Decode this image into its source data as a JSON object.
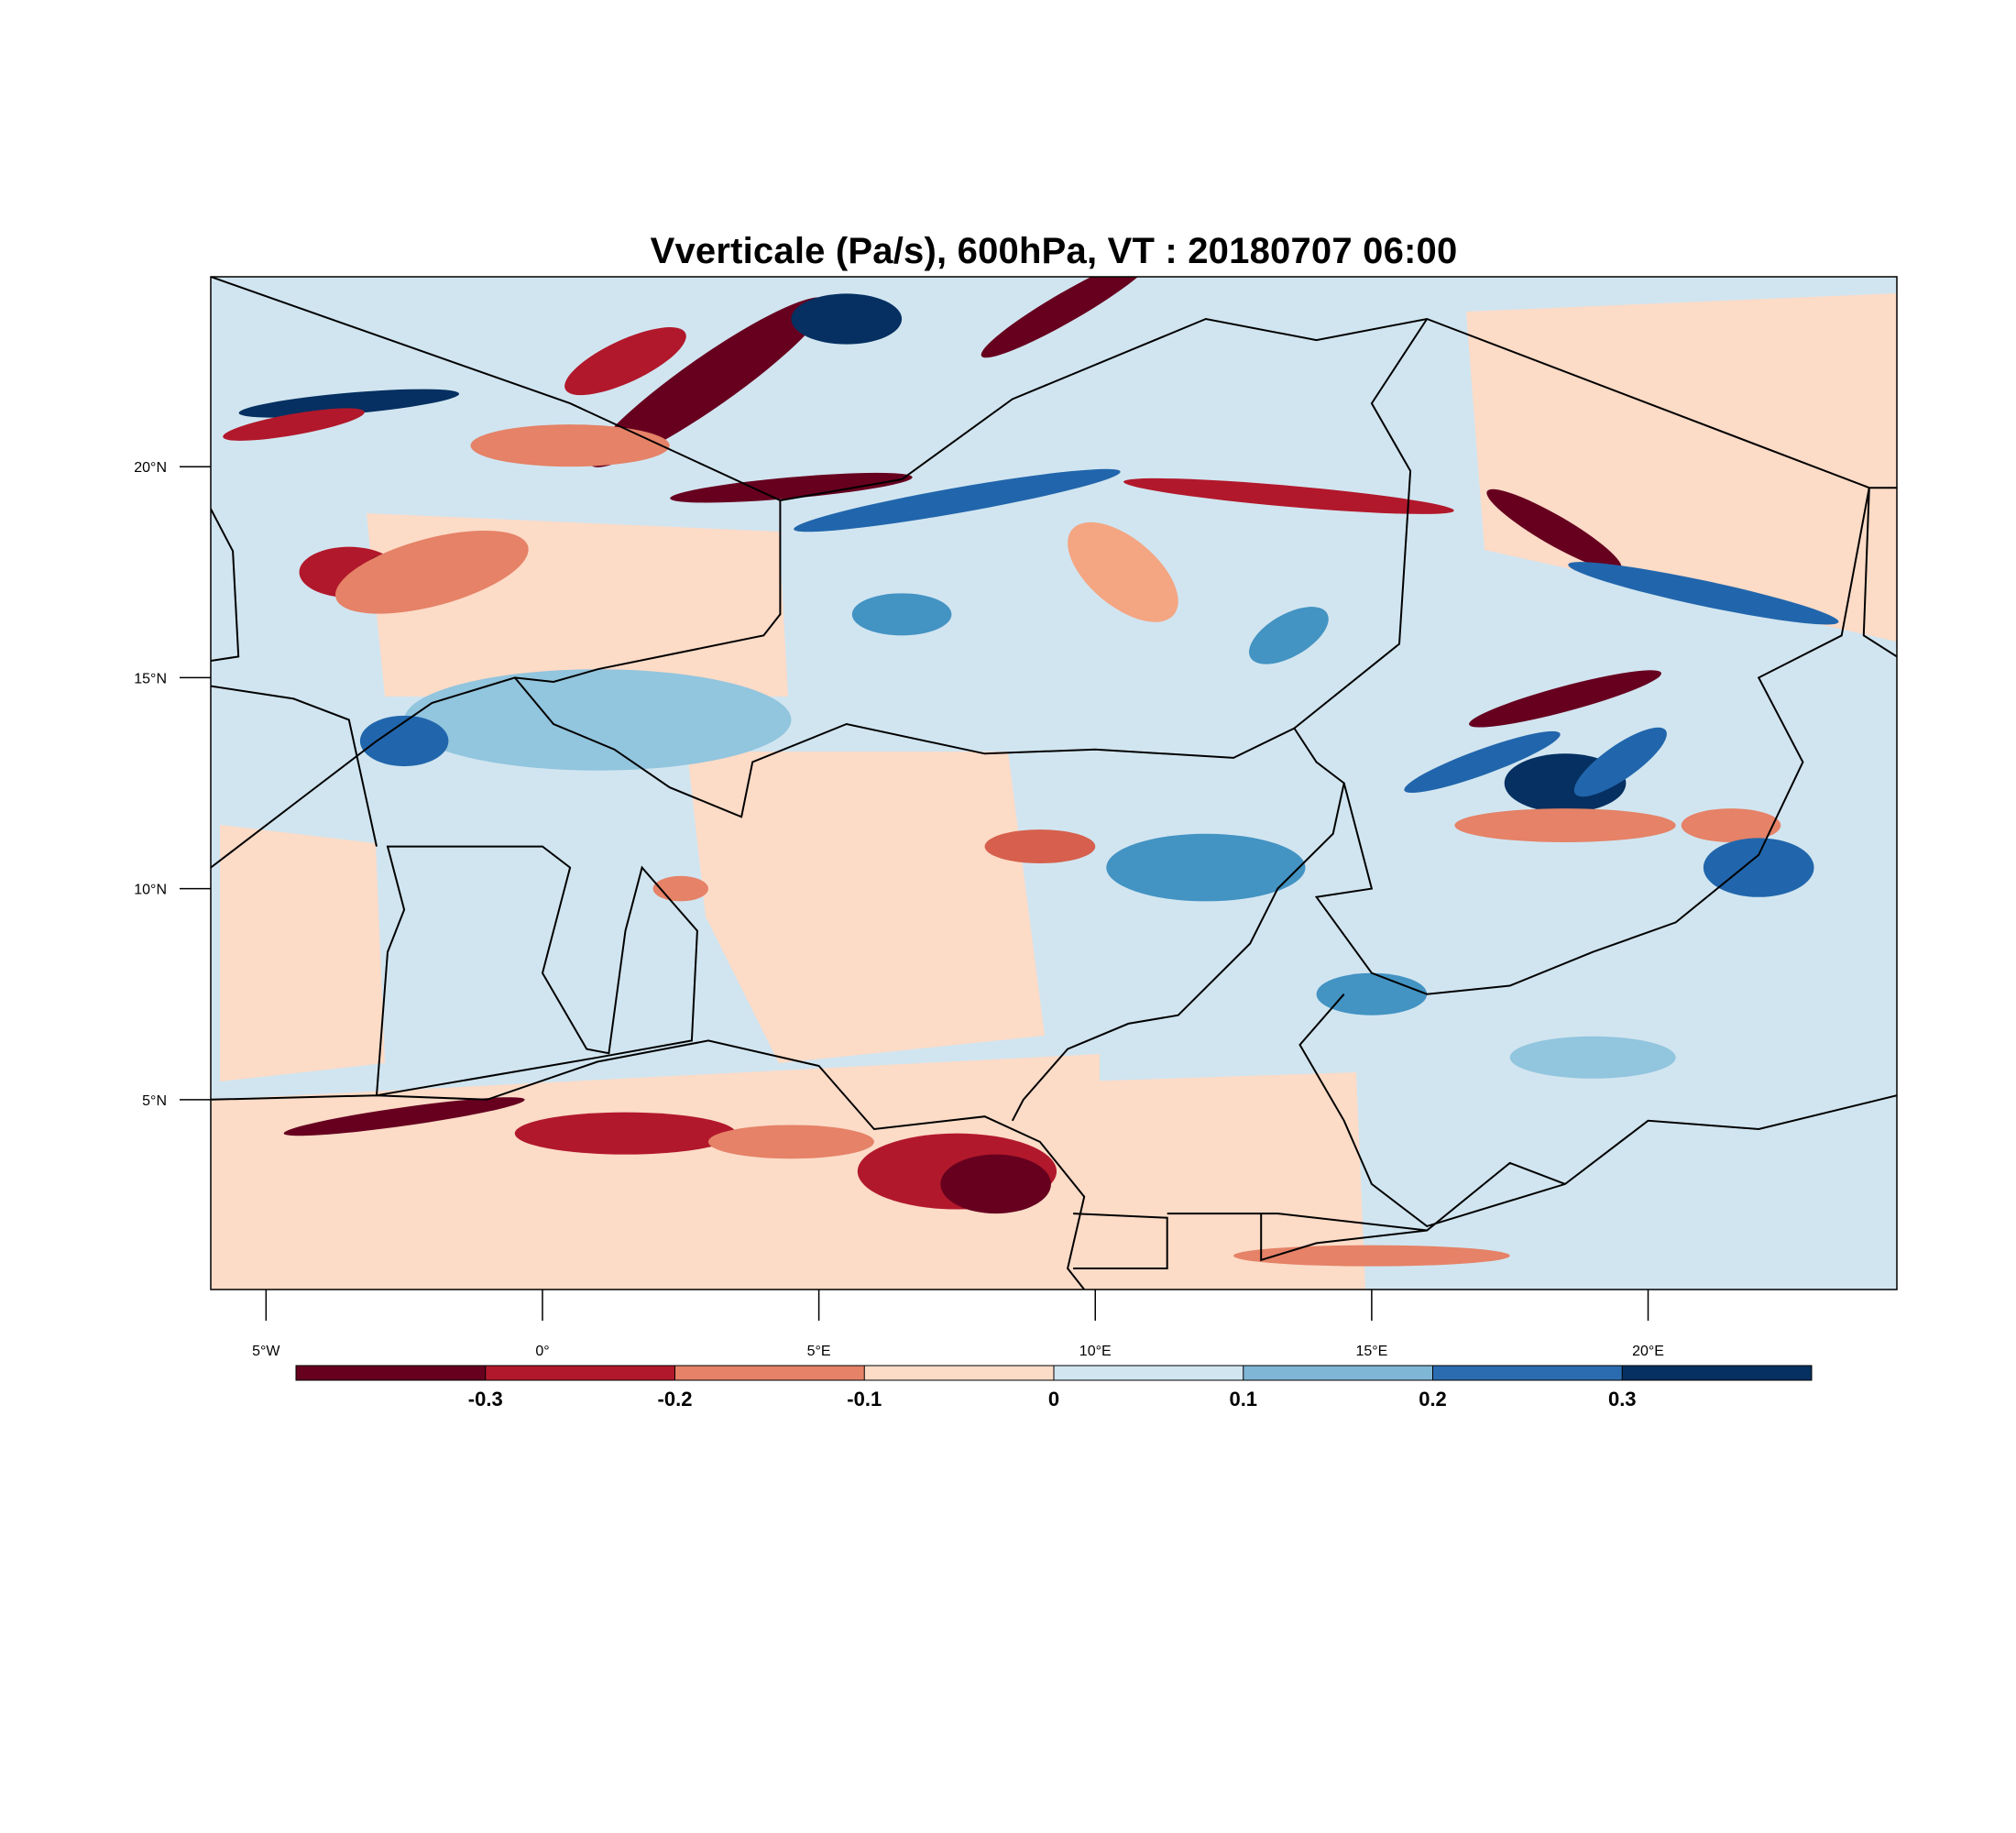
{
  "title": "Vverticale (Pa/s), 600hPa, VT : 20180707  06:00",
  "map": {
    "lon_range": [
      -6,
      24.5
    ],
    "lat_range": [
      0.5,
      24.5
    ],
    "x_ticks": [
      {
        "value": -5,
        "label": "5°W"
      },
      {
        "value": 0,
        "label": "0°"
      },
      {
        "value": 5,
        "label": "5°E"
      },
      {
        "value": 10,
        "label": "10°E"
      },
      {
        "value": 15,
        "label": "15°E"
      },
      {
        "value": 20,
        "label": "20°E"
      }
    ],
    "y_ticks": [
      {
        "value": 5,
        "label": "5°N"
      },
      {
        "value": 10,
        "label": "10°N"
      },
      {
        "value": 15,
        "label": "15°N"
      },
      {
        "value": 20,
        "label": "20°N"
      }
    ],
    "background_level": "0 to 0.1",
    "blobs": [
      {
        "lon": -2.5,
        "lat": 4.6,
        "rx": 2.2,
        "ry": 0.22,
        "rot": -8,
        "c": "#67001f"
      },
      {
        "lon": 1.5,
        "lat": 4.2,
        "rx": 2.0,
        "ry": 0.5,
        "rot": 0,
        "c": "#b2182b"
      },
      {
        "lon": 7.5,
        "lat": 3.3,
        "rx": 1.8,
        "ry": 0.9,
        "rot": 0,
        "c": "#b2182b"
      },
      {
        "lon": 8.2,
        "lat": 3.0,
        "rx": 1.0,
        "ry": 0.7,
        "rot": 0,
        "c": "#67001f"
      },
      {
        "lon": 4.5,
        "lat": 4.0,
        "rx": 1.5,
        "ry": 0.4,
        "rot": 0,
        "c": "#e58267"
      },
      {
        "lon": 3.0,
        "lat": 22.0,
        "rx": 2.6,
        "ry": 0.6,
        "rot": -35,
        "c": "#67001f"
      },
      {
        "lon": 1.5,
        "lat": 22.5,
        "rx": 1.2,
        "ry": 0.5,
        "rot": -25,
        "c": "#b2182b"
      },
      {
        "lon": 5.5,
        "lat": 23.5,
        "rx": 1.0,
        "ry": 0.6,
        "rot": 0,
        "c": "#053061"
      },
      {
        "lon": 9.5,
        "lat": 23.8,
        "rx": 1.8,
        "ry": 0.35,
        "rot": -30,
        "c": "#67001f"
      },
      {
        "lon": 7.5,
        "lat": 19.2,
        "rx": 3.0,
        "ry": 0.3,
        "rot": -10,
        "c": "#2166ac"
      },
      {
        "lon": 4.5,
        "lat": 19.5,
        "rx": 2.2,
        "ry": 0.25,
        "rot": -5,
        "c": "#67001f"
      },
      {
        "lon": 13.5,
        "lat": 19.3,
        "rx": 3.0,
        "ry": 0.25,
        "rot": 5,
        "c": "#b2182b"
      },
      {
        "lon": 18.3,
        "lat": 18.5,
        "rx": 1.4,
        "ry": 0.35,
        "rot": 30,
        "c": "#67001f"
      },
      {
        "lon": 21.0,
        "lat": 17.0,
        "rx": 2.5,
        "ry": 0.3,
        "rot": 12,
        "c": "#2166ac"
      },
      {
        "lon": -3.5,
        "lat": 21.5,
        "rx": 2.0,
        "ry": 0.25,
        "rot": -5,
        "c": "#053061"
      },
      {
        "lon": -4.5,
        "lat": 21.0,
        "rx": 1.3,
        "ry": 0.25,
        "rot": -10,
        "c": "#b2182b"
      },
      {
        "lon": -3.5,
        "lat": 17.5,
        "rx": 0.9,
        "ry": 0.6,
        "rot": 0,
        "c": "#b2182b"
      },
      {
        "lon": -2.7,
        "lat": 17.6,
        "rx": 0.5,
        "ry": 0.35,
        "rot": 0,
        "c": "#67001f"
      },
      {
        "lon": 0.5,
        "lat": 20.5,
        "rx": 1.8,
        "ry": 0.5,
        "rot": 0,
        "c": "#e58267"
      },
      {
        "lon": 18.5,
        "lat": 12.5,
        "rx": 1.1,
        "ry": 0.7,
        "rot": 0,
        "c": "#053061"
      },
      {
        "lon": 19.5,
        "lat": 13.0,
        "rx": 1.0,
        "ry": 0.4,
        "rot": -35,
        "c": "#2166ac"
      },
      {
        "lon": 18.5,
        "lat": 14.5,
        "rx": 1.8,
        "ry": 0.3,
        "rot": -15,
        "c": "#67001f"
      },
      {
        "lon": 17.0,
        "lat": 13.0,
        "rx": 1.5,
        "ry": 0.3,
        "rot": -20,
        "c": "#2166ac"
      },
      {
        "lon": 18.5,
        "lat": 11.5,
        "rx": 2.0,
        "ry": 0.4,
        "rot": 0,
        "c": "#e58267"
      },
      {
        "lon": 12.0,
        "lat": 10.5,
        "rx": 1.8,
        "ry": 0.8,
        "rot": 0,
        "c": "#4393c3"
      },
      {
        "lon": 1.0,
        "lat": 14.0,
        "rx": 3.5,
        "ry": 1.2,
        "rot": 0,
        "c": "#92c5de"
      },
      {
        "lon": -2.5,
        "lat": 13.5,
        "rx": 0.8,
        "ry": 0.6,
        "rot": 0,
        "c": "#2166ac"
      },
      {
        "lon": 2.5,
        "lat": 10.0,
        "rx": 0.5,
        "ry": 0.3,
        "rot": 0,
        "c": "#e58267"
      },
      {
        "lon": 9.0,
        "lat": 11.0,
        "rx": 1.0,
        "ry": 0.4,
        "rot": 0,
        "c": "#d6604d"
      },
      {
        "lon": 15.0,
        "lat": 7.5,
        "rx": 1.0,
        "ry": 0.5,
        "rot": 0,
        "c": "#4393c3"
      },
      {
        "lon": 19.0,
        "lat": 6.0,
        "rx": 1.5,
        "ry": 0.5,
        "rot": 0,
        "c": "#92c5de"
      },
      {
        "lon": -2.0,
        "lat": 17.5,
        "rx": 1.8,
        "ry": 0.8,
        "rot": -15,
        "c": "#e58267"
      },
      {
        "lon": 21.5,
        "lat": 11.5,
        "rx": 0.9,
        "ry": 0.4,
        "rot": 0,
        "c": "#e58267"
      },
      {
        "lon": 15.0,
        "lat": 1.3,
        "rx": 2.5,
        "ry": 0.25,
        "rot": 0,
        "c": "#e58267"
      },
      {
        "lon": 22.0,
        "lat": 10.5,
        "rx": 1.0,
        "ry": 0.7,
        "rot": 0,
        "c": "#2166ac"
      },
      {
        "lon": 10.5,
        "lat": 17.5,
        "rx": 1.2,
        "ry": 0.8,
        "rot": 40,
        "c": "#f4a582"
      },
      {
        "lon": 6.5,
        "lat": 16.5,
        "rx": 0.9,
        "ry": 0.5,
        "rot": 0,
        "c": "#4393c3"
      },
      {
        "lon": 13.5,
        "lat": 16.0,
        "rx": 0.8,
        "ry": 0.5,
        "rot": -30,
        "c": "#4393c3"
      }
    ],
    "borders": [
      [
        [
          -6,
          24.5
        ],
        [
          0.5,
          21.5
        ],
        [
          4.3,
          19.2
        ],
        [
          6.5,
          19.7
        ],
        [
          8.5,
          21.6
        ],
        [
          12.0,
          23.5
        ],
        [
          14.0,
          23.0
        ],
        [
          16.0,
          23.5
        ],
        [
          24.0,
          19.5
        ],
        [
          24.5,
          19.5
        ]
      ],
      [
        [
          4.3,
          19.2
        ],
        [
          4.3,
          16.5
        ],
        [
          4.0,
          16.0
        ],
        [
          1.0,
          15.2
        ],
        [
          0.2,
          14.9
        ],
        [
          -0.5,
          15.0
        ],
        [
          -2.0,
          14.4
        ],
        [
          -3.0,
          13.5
        ],
        [
          -4.5,
          12.0
        ],
        [
          -5.5,
          11.0
        ],
        [
          -6,
          10.5
        ]
      ],
      [
        [
          -0.5,
          15.0
        ],
        [
          0.2,
          13.9
        ],
        [
          1.3,
          13.3
        ],
        [
          2.3,
          12.4
        ],
        [
          3.6,
          11.7
        ],
        [
          3.8,
          13.0
        ],
        [
          5.5,
          13.9
        ],
        [
          8.0,
          13.2
        ],
        [
          10.0,
          13.3
        ],
        [
          12.5,
          13.1
        ],
        [
          13.6,
          13.8
        ],
        [
          14.0,
          13.0
        ],
        [
          14.5,
          12.5
        ],
        [
          14.3,
          11.3
        ],
        [
          13.3,
          10.0
        ],
        [
          12.8,
          8.7
        ],
        [
          11.5,
          7.0
        ],
        [
          10.6,
          6.8
        ],
        [
          9.5,
          6.2
        ],
        [
          8.7,
          5.0
        ],
        [
          8.5,
          4.5
        ]
      ],
      [
        [
          13.6,
          13.8
        ],
        [
          15.5,
          15.8
        ],
        [
          15.7,
          19.9
        ],
        [
          15.0,
          21.5
        ],
        [
          16.0,
          23.5
        ]
      ],
      [
        [
          14.5,
          12.5
        ],
        [
          15.0,
          10.0
        ],
        [
          14.0,
          9.8
        ],
        [
          15.0,
          8.0
        ],
        [
          16.0,
          7.5
        ],
        [
          17.5,
          7.7
        ],
        [
          19.0,
          8.5
        ],
        [
          20.5,
          9.2
        ],
        [
          22.0,
          10.8
        ],
        [
          22.8,
          13.0
        ],
        [
          22.0,
          15.0
        ],
        [
          23.5,
          16.0
        ],
        [
          24.0,
          19.5
        ]
      ],
      [
        [
          14.5,
          7.5
        ],
        [
          13.7,
          6.3
        ],
        [
          14.5,
          4.5
        ],
        [
          15.0,
          3.0
        ],
        [
          16.0,
          2.0
        ],
        [
          18.5,
          3.0
        ],
        [
          20.0,
          4.5
        ],
        [
          22.0,
          4.3
        ],
        [
          24.5,
          5.1
        ]
      ],
      [
        [
          -3.0,
          5.1
        ],
        [
          -2.8,
          8.5
        ],
        [
          -2.5,
          9.5
        ],
        [
          -2.8,
          11.0
        ],
        [
          0.0,
          11.0
        ],
        [
          0.5,
          10.5
        ],
        [
          0.0,
          8.0
        ],
        [
          0.8,
          6.2
        ],
        [
          1.2,
          6.1
        ],
        [
          1.5,
          9.0
        ],
        [
          1.8,
          10.5
        ],
        [
          2.8,
          9.0
        ],
        [
          2.7,
          6.4
        ],
        [
          1.0,
          6.0
        ],
        [
          -3.0,
          5.1
        ]
      ],
      [
        [
          -6,
          5.0
        ],
        [
          -3.0,
          5.1
        ],
        [
          -1.0,
          5.0
        ],
        [
          1.0,
          5.9
        ],
        [
          3.0,
          6.4
        ],
        [
          5.0,
          5.8
        ],
        [
          6.0,
          4.3
        ],
        [
          8.0,
          4.6
        ],
        [
          9.0,
          4.0
        ],
        [
          9.8,
          2.7
        ],
        [
          9.5,
          1.0
        ],
        [
          9.8,
          0.5
        ]
      ],
      [
        [
          9.6,
          2.3
        ],
        [
          11.3,
          2.2
        ],
        [
          11.3,
          1.0
        ],
        [
          9.6,
          1.0
        ]
      ],
      [
        [
          11.3,
          2.3
        ],
        [
          13.3,
          2.3
        ],
        [
          16.0,
          1.9
        ]
      ],
      [
        [
          -6,
          15.4
        ],
        [
          -5.5,
          15.5
        ],
        [
          -5.6,
          18.0
        ],
        [
          -6.0,
          19.0
        ]
      ],
      [
        [
          13.0,
          2.3
        ],
        [
          13.0,
          1.2
        ],
        [
          14.0,
          1.6
        ],
        [
          16.0,
          1.9
        ],
        [
          17.5,
          3.5
        ],
        [
          18.5,
          3.0
        ]
      ],
      [
        [
          24.0,
          19.5
        ],
        [
          23.9,
          16.0
        ],
        [
          24.5,
          15.5
        ]
      ],
      [
        [
          -3.0,
          11.0
        ],
        [
          -3.5,
          14.0
        ],
        [
          -4.5,
          14.5
        ],
        [
          -6.0,
          14.8
        ]
      ]
    ]
  },
  "colorbar": {
    "colors": [
      "#67001f",
      "#b2182b",
      "#e58267",
      "#fcdbc7",
      "#d1e5f0",
      "#7fb6d6",
      "#2b6cb0",
      "#053061"
    ],
    "labels": [
      "-0.3",
      "-0.2",
      "-0.1",
      "0",
      "0.1",
      "0.2",
      "0.3"
    ]
  }
}
